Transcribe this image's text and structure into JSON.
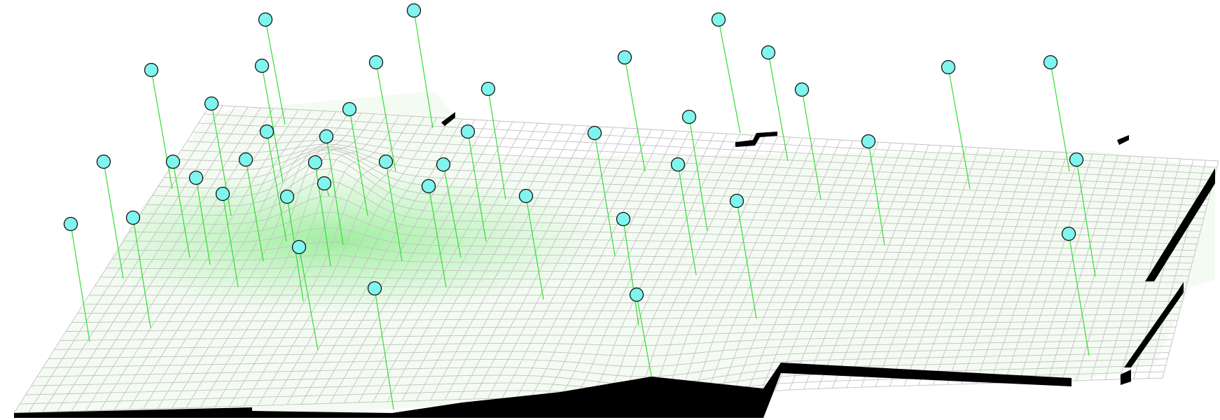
{
  "scene": {
    "description_labels": [],
    "surface": {
      "fill_light": "#f4fbf2",
      "fill_peak": "#9fef9f",
      "grid_color": "#c2c2c2",
      "skirt_color": "#000000"
    },
    "markers": {
      "fill": "#7ff5ee",
      "stroke": "#111111",
      "stem_color": "#33dd33",
      "count": 46
    }
  }
}
